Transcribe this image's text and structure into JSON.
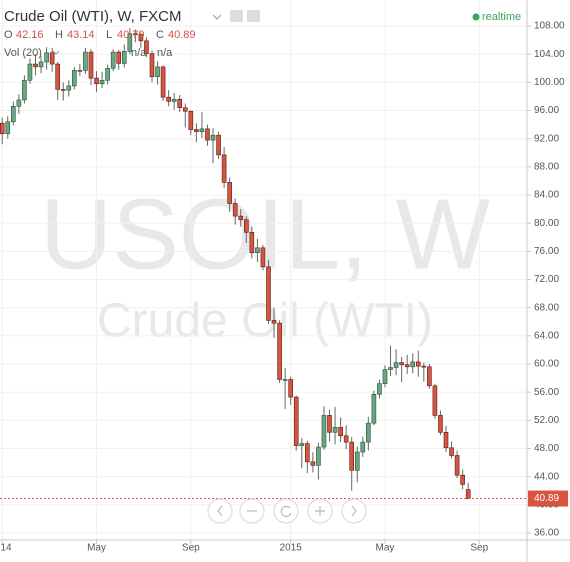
{
  "chart_data": {
    "type": "candlestick",
    "title": "Crude Oil (WTI), W, FXCM",
    "legend_labels": [
      "O",
      "H",
      "L",
      "C"
    ],
    "volume_label": "Vol (20)",
    "volume_values": [
      "n/a",
      "n/a"
    ],
    "status": "realtime",
    "watermark": [
      "USOIL, W",
      "Crude Oil (WTI)"
    ],
    "up_color": "#6ba583",
    "down_color": "#d75442",
    "grid": true,
    "open": [
      94.2,
      92.7,
      94.4,
      96.6,
      97.5,
      100.3,
      102.6,
      102.2,
      102.9,
      104.2,
      102.6,
      99.0,
      98.9,
      99.5,
      101.7,
      101.7,
      104.3,
      100.6,
      99.8,
      100.3,
      102.0,
      104.3,
      102.7,
      104.4,
      106.9,
      106.8,
      105.9,
      104.1,
      100.8,
      102.2,
      97.9,
      97.3,
      97.6,
      96.4,
      95.9,
      93.3,
      93.0,
      93.4,
      91.8,
      92.5,
      89.7,
      85.8,
      82.8,
      81.0,
      80.5,
      78.7,
      75.8,
      76.5,
      73.8,
      66.2,
      65.8,
      57.8,
      57.8,
      55.3,
      48.4,
      48.7,
      46.1,
      45.6,
      48.2,
      52.7,
      50.3,
      51.0,
      49.8,
      48.9,
      44.9,
      47.5,
      48.9,
      51.6,
      55.7,
      57.2,
      59.2,
      59.5,
      60.2,
      59.9,
      59.6,
      60.3,
      59.7,
      59.6,
      56.9,
      52.7,
      50.3,
      48.1,
      47.0,
      44.2,
      42.16
    ],
    "high": [
      95.0,
      95.2,
      97.3,
      98.3,
      101.0,
      103.4,
      104.0,
      103.7,
      105.0,
      104.9,
      102.9,
      100.0,
      100.3,
      102.2,
      102.6,
      104.9,
      104.7,
      101.6,
      101.5,
      102.5,
      104.7,
      104.6,
      105.4,
      107.7,
      107.5,
      107.1,
      106.4,
      104.5,
      103.0,
      102.4,
      98.9,
      98.5,
      98.2,
      97.0,
      96.0,
      94.2,
      95.8,
      94.0,
      93.5,
      93.0,
      90.8,
      86.5,
      83.5,
      82.0,
      81.0,
      79.5,
      77.8,
      76.9,
      74.8,
      68.0,
      66.2,
      59.4,
      58.2,
      55.5,
      49.5,
      49.1,
      47.5,
      48.8,
      54.0,
      53.5,
      53.9,
      52.4,
      51.3,
      49.6,
      48.3,
      49.7,
      52.5,
      56.2,
      57.8,
      59.8,
      62.6,
      62.1,
      61.0,
      61.3,
      61.5,
      61.9,
      60.2,
      60.0,
      57.2,
      53.4,
      51.2,
      49.0,
      47.7,
      45.0,
      43.14
    ],
    "low": [
      91.2,
      92.0,
      93.9,
      95.5,
      97.0,
      99.8,
      101.0,
      101.3,
      101.8,
      101.5,
      97.5,
      97.4,
      98.0,
      99.0,
      100.9,
      101.2,
      99.6,
      98.6,
      99.2,
      99.7,
      101.6,
      101.8,
      102.1,
      104.0,
      105.7,
      104.9,
      103.6,
      100.0,
      99.7,
      97.4,
      96.6,
      96.1,
      95.8,
      93.6,
      92.5,
      91.5,
      92.1,
      91.0,
      88.5,
      89.1,
      85.0,
      81.6,
      79.8,
      79.5,
      77.2,
      75.0,
      74.5,
      73.3,
      65.7,
      63.7,
      57.3,
      53.6,
      54.2,
      47.7,
      45.2,
      44.5,
      44.6,
      43.6,
      47.8,
      49.0,
      48.6,
      48.9,
      47.9,
      42.0,
      43.2,
      46.8,
      47.7,
      51.3,
      55.1,
      56.7,
      58.3,
      58.4,
      57.4,
      58.6,
      58.7,
      58.2,
      57.5,
      56.5,
      52.2,
      49.9,
      47.5,
      46.6,
      43.8,
      42.2,
      40.79
    ],
    "close": [
      92.7,
      94.4,
      96.6,
      97.5,
      100.3,
      102.6,
      102.2,
      102.9,
      104.2,
      102.6,
      99.0,
      98.9,
      99.5,
      101.7,
      101.7,
      104.3,
      100.6,
      99.8,
      100.3,
      102.0,
      104.3,
      102.7,
      104.4,
      106.9,
      106.8,
      105.9,
      104.1,
      100.8,
      102.2,
      97.9,
      97.3,
      97.6,
      96.4,
      95.9,
      93.3,
      93.0,
      93.4,
      91.8,
      92.5,
      89.7,
      85.8,
      82.8,
      81.0,
      80.5,
      78.7,
      75.8,
      76.5,
      73.8,
      66.2,
      65.8,
      57.8,
      57.8,
      55.3,
      48.4,
      48.7,
      46.1,
      45.6,
      48.2,
      52.7,
      50.3,
      51.0,
      49.8,
      48.9,
      44.9,
      47.5,
      48.9,
      51.6,
      55.7,
      57.2,
      59.2,
      59.5,
      60.2,
      59.9,
      59.6,
      60.3,
      59.7,
      59.6,
      56.9,
      52.7,
      50.3,
      48.1,
      47.0,
      44.2,
      42.9,
      40.89
    ],
    "xlim": [
      -0.4,
      94.6
    ],
    "xticks": [
      {
        "value": 0,
        "label": "14"
      },
      {
        "value": 17,
        "label": "May"
      },
      {
        "value": 34,
        "label": "Sep"
      },
      {
        "value": 52,
        "label": "2015"
      },
      {
        "value": 69,
        "label": "May"
      },
      {
        "value": 86,
        "label": "Sep"
      }
    ],
    "ylim": [
      35,
      111.7
    ],
    "yticks": [
      {
        "value": 36,
        "label": "36.00"
      },
      {
        "value": 40,
        "label": "40.00"
      },
      {
        "value": 44,
        "label": "44.00"
      },
      {
        "value": 48,
        "label": "48.00"
      },
      {
        "value": 52,
        "label": "52.00"
      },
      {
        "value": 56,
        "label": "56.00"
      },
      {
        "value": 60,
        "label": "60.00"
      },
      {
        "value": 64,
        "label": "64.00"
      },
      {
        "value": 68,
        "label": "68.00"
      },
      {
        "value": 72,
        "label": "72.00"
      },
      {
        "value": 76,
        "label": "76.00"
      },
      {
        "value": 80,
        "label": "80.00"
      },
      {
        "value": 84,
        "label": "84.00"
      },
      {
        "value": 88,
        "label": "88.00"
      },
      {
        "value": 92,
        "label": "92.00"
      },
      {
        "value": 96,
        "label": "96.00"
      },
      {
        "value": 100,
        "label": "100.00"
      },
      {
        "value": 104,
        "label": "104.00"
      },
      {
        "value": 108,
        "label": "108.00"
      }
    ]
  }
}
